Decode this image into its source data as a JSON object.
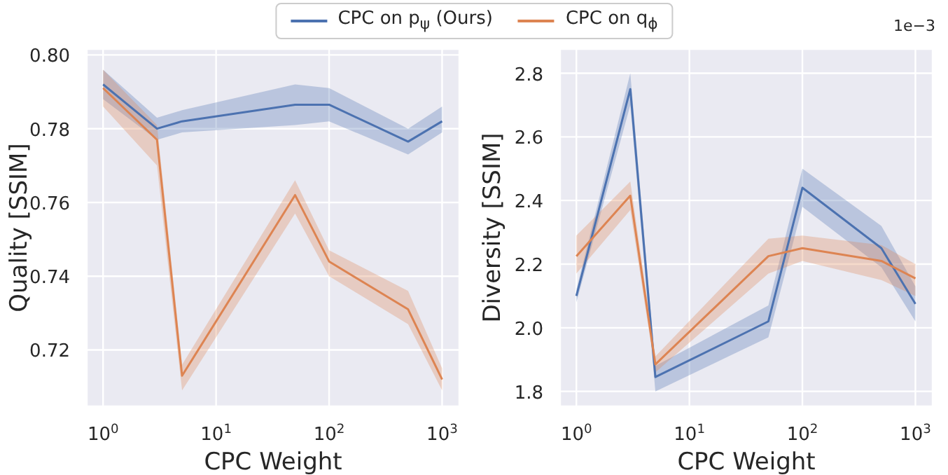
{
  "chart_data": [
    {
      "type": "line",
      "xlabel": "CPC Weight",
      "ylabel": "Quality [SSIM]",
      "log": "x",
      "grid": true,
      "legend": "top",
      "x": [
        1,
        3,
        5,
        50,
        100,
        500,
        1000
      ],
      "xlim": [
        0.718,
        1419
      ],
      "xticks": [
        {
          "value": 1,
          "label": "10$^{0}$"
        },
        {
          "value": 10,
          "label": "10$^{1}$"
        },
        {
          "value": 100,
          "label": "10$^{2}$"
        },
        {
          "value": 1000,
          "label": "10$^{3}$"
        }
      ],
      "ylim": [
        0.7047,
        0.8016
      ],
      "yticks": [
        0.72,
        0.74,
        0.76,
        0.78,
        {
          "value": 0.8,
          "label": "0.80"
        }
      ],
      "series": [
        {
          "name": "CPC on p$_{ψ}$ (Ours)",
          "color": "#4c72b0",
          "values": [
            0.792,
            0.78,
            0.782,
            0.7865,
            0.7865,
            0.7765,
            0.782
          ],
          "lower": [
            0.788,
            0.777,
            0.779,
            0.781,
            0.782,
            0.773,
            0.779
          ],
          "upper": [
            0.796,
            0.783,
            0.785,
            0.792,
            0.791,
            0.78,
            0.786
          ]
        },
        {
          "name": "CPC on q$_{ϕ}$",
          "color": "#dd8452",
          "values": [
            0.791,
            0.777,
            0.713,
            0.762,
            0.744,
            0.731,
            0.712
          ],
          "lower": [
            0.786,
            0.77,
            0.709,
            0.757,
            0.74,
            0.727,
            0.709
          ],
          "upper": [
            0.796,
            0.781,
            0.716,
            0.766,
            0.747,
            0.736,
            0.715
          ]
        }
      ]
    },
    {
      "type": "line",
      "xlabel": "CPC Weight",
      "ylabel": "Diversity [SSIM]",
      "log": "x",
      "grid": true,
      "annotations": [
        "1e−3"
      ],
      "x": [
        1,
        3,
        5,
        50,
        100,
        500,
        1000
      ],
      "xlim": [
        0.718,
        1419
      ],
      "xticks": [
        {
          "value": 1,
          "label": "10$^{0}$"
        },
        {
          "value": 10,
          "label": "10$^{1}$"
        },
        {
          "value": 100,
          "label": "10$^{2}$"
        },
        {
          "value": 1000,
          "label": "10$^{3}$"
        }
      ],
      "ylim": [
        1.753,
        2.876
      ],
      "yticks": [
        1.8,
        {
          "value": 2,
          "label": "2.0"
        },
        2.2,
        2.4,
        2.6,
        2.8
      ],
      "series": [
        {
          "color": "#4c72b0",
          "values": [
            2.1,
            2.75,
            1.845,
            2.02,
            2.44,
            2.25,
            2.075
          ],
          "lower": [
            2.08,
            2.7,
            1.8,
            1.97,
            2.38,
            2.19,
            2.02
          ],
          "upper": [
            2.12,
            2.8,
            1.88,
            2.07,
            2.5,
            2.32,
            2.13
          ]
        },
        {
          "color": "#dd8452",
          "values": [
            2.225,
            2.415,
            1.885,
            2.225,
            2.25,
            2.21,
            2.155
          ],
          "lower": [
            2.17,
            2.37,
            1.86,
            2.17,
            2.21,
            2.15,
            2.1
          ],
          "upper": [
            2.29,
            2.46,
            1.91,
            2.28,
            2.29,
            2.26,
            2.2
          ]
        }
      ]
    }
  ]
}
